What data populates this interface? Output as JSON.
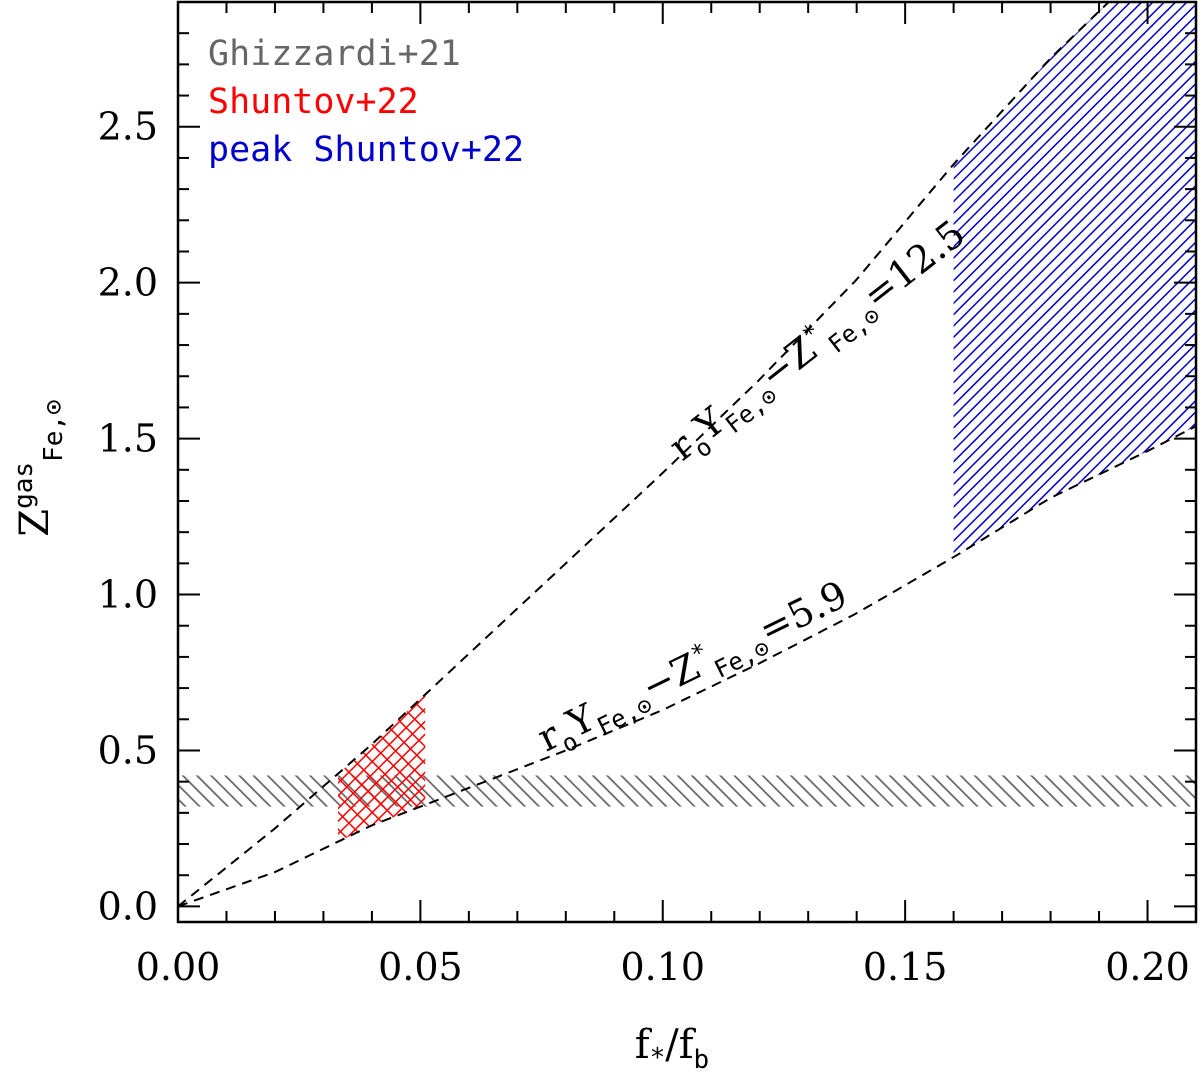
{
  "chart_data": {
    "type": "area",
    "xlabel": {
      "main": "f",
      "sub1": "*",
      "slash": "/",
      "main2": "f",
      "sub2": "b"
    },
    "ylabel": {
      "main": "Z",
      "sup": "gas",
      "sub": "Fe,⊙"
    },
    "xlim": [
      0.0,
      0.21
    ],
    "ylim": [
      -0.05,
      2.9
    ],
    "xticks": [
      {
        "value": 0.0,
        "label": "0.00"
      },
      {
        "value": 0.05,
        "label": "0.05"
      },
      {
        "value": 0.1,
        "label": "0.10"
      },
      {
        "value": 0.15,
        "label": "0.15"
      },
      {
        "value": 0.2,
        "label": "0.20"
      }
    ],
    "yticks": [
      {
        "value": 0.0,
        "label": "0.0"
      },
      {
        "value": 0.5,
        "label": "0.5"
      },
      {
        "value": 1.0,
        "label": "1.0"
      },
      {
        "value": 1.5,
        "label": "1.5"
      },
      {
        "value": 2.0,
        "label": "2.0"
      },
      {
        "value": 2.5,
        "label": "2.5"
      }
    ],
    "curves": [
      {
        "label": {
          "pre": "r",
          "sub1": "o",
          "mid": "Y",
          "sub2": "Fe,⊙",
          "minus": "−Z",
          "sup": "*",
          "sub3": "Fe,⊙",
          "val": "=12.5"
        },
        "x": [
          0.0,
          0.02,
          0.04,
          0.06,
          0.08,
          0.1,
          0.12,
          0.14,
          0.16,
          0.18,
          0.2,
          0.21
        ],
        "y": [
          0.0,
          0.25,
          0.52,
          0.81,
          1.1,
          1.39,
          1.69,
          2.01,
          2.38,
          2.72,
          3.02,
          3.16
        ]
      },
      {
        "label": {
          "pre": "r",
          "sub1": "o",
          "mid": "Y",
          "sub2": "Fe,⊙",
          "minus": "−Z",
          "sup": "*",
          "sub3": "Fe,⊙",
          "val": "=5.9"
        },
        "x": [
          0.0,
          0.02,
          0.04,
          0.06,
          0.08,
          0.1,
          0.12,
          0.14,
          0.16,
          0.18,
          0.2,
          0.21
        ],
        "y": [
          0.0,
          0.11,
          0.26,
          0.38,
          0.5,
          0.63,
          0.78,
          0.94,
          1.12,
          1.31,
          1.46,
          1.54
        ]
      }
    ],
    "bands": [
      {
        "name": "Ghizzardi+21",
        "color": "#666666",
        "x": [
          0.0,
          0.21
        ],
        "ymin": 0.32,
        "ymax": 0.42
      },
      {
        "name": "Shuntov+22",
        "color": "#ff0000",
        "x": [
          0.033,
          0.051
        ]
      },
      {
        "name": "peak Shuntov+22",
        "color": "#0000cc",
        "x": [
          0.16,
          0.21
        ]
      }
    ],
    "legend": {
      "placement": "top-left",
      "entries": [
        {
          "text": "Ghizzardi+21",
          "color": "#666666"
        },
        {
          "text": "Shuntov+22",
          "color": "#ff0000"
        },
        {
          "text": "peak Shuntov+22",
          "color": "#0000cc"
        }
      ]
    }
  }
}
